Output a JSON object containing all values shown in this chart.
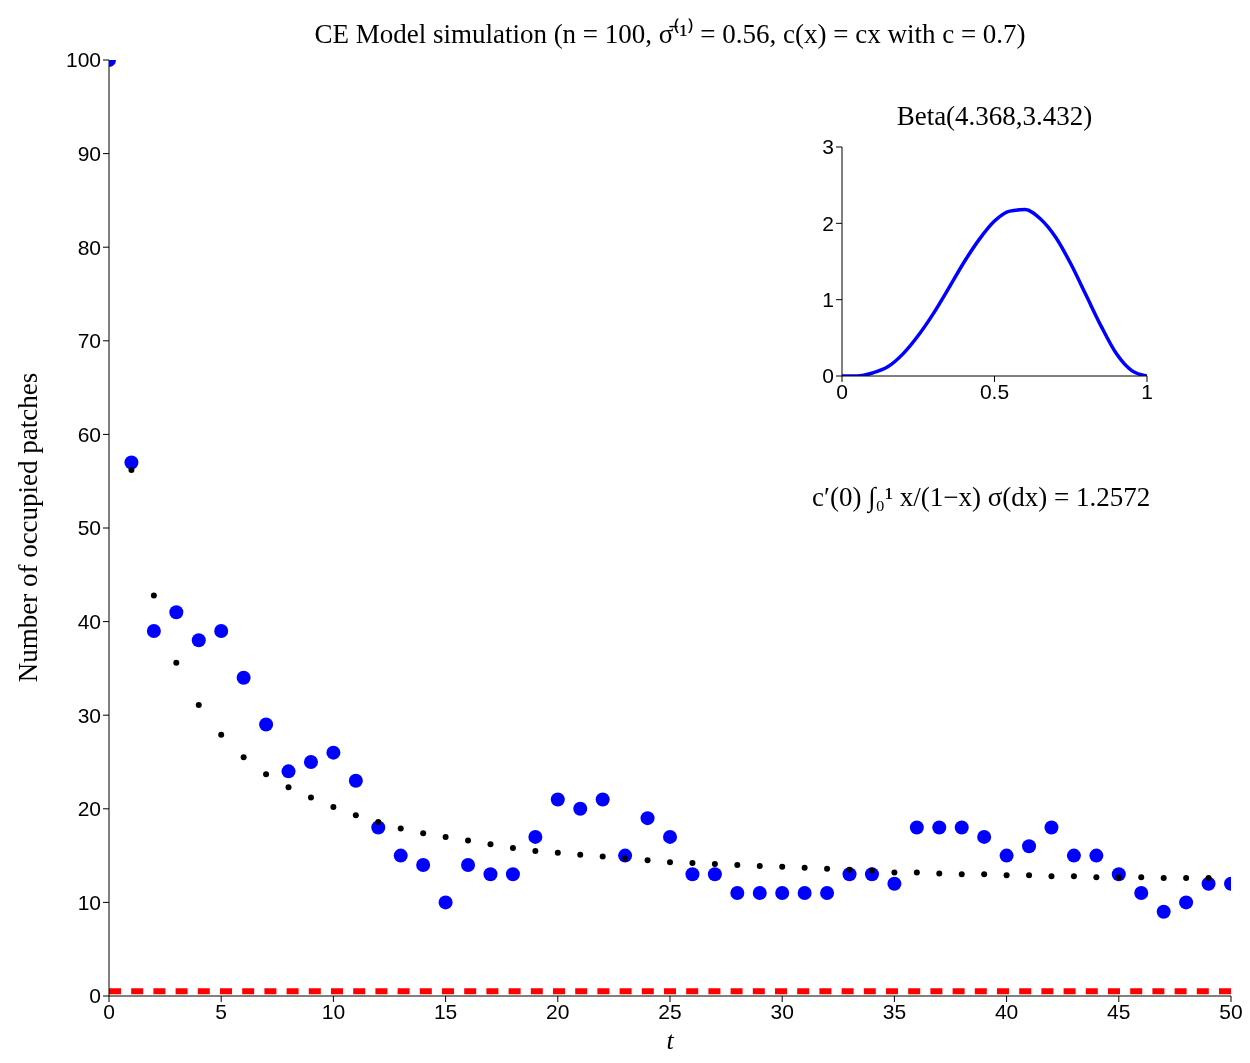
{
  "chart_data": [
    {
      "type": "scatter",
      "title": "CE Model simulation (n = 100, σ̄⁽¹⁾ = 0.56, c(x) = cx  with c = 0.7)",
      "xlabel": "t",
      "ylabel": "Number of occupied patches",
      "x": [
        0,
        1,
        2,
        3,
        4,
        5,
        6,
        7,
        8,
        9,
        10,
        11,
        12,
        13,
        14,
        15,
        16,
        17,
        18,
        19,
        20,
        21,
        22,
        23,
        24,
        25,
        26,
        27,
        28,
        29,
        30,
        31,
        32,
        33,
        34,
        35,
        36,
        37,
        38,
        39,
        40,
        41,
        42,
        43,
        44,
        45,
        46,
        47,
        48,
        49,
        50
      ],
      "series": [
        {
          "color": "#0000ff",
          "values": [
            100,
            57,
            39,
            41,
            38,
            39,
            34,
            29,
            24,
            25,
            26,
            23,
            18,
            15,
            14,
            10,
            14,
            13,
            13,
            17,
            21,
            20,
            21,
            15,
            19,
            17,
            13,
            13,
            11,
            11,
            11,
            11,
            11,
            13,
            13,
            12,
            18,
            18,
            18,
            17,
            15,
            16,
            18,
            15,
            15,
            13,
            11,
            9,
            10,
            12,
            12
          ]
        },
        {
          "color": "#000000",
          "values": [
            null,
            56.2,
            42.8,
            35.6,
            31.1,
            27.9,
            25.5,
            23.7,
            22.3,
            21.2,
            20.2,
            19.3,
            18.6,
            17.9,
            17.4,
            17.0,
            16.6,
            16.2,
            15.8,
            15.5,
            15.3,
            15.1,
            14.9,
            14.7,
            14.5,
            14.3,
            14.2,
            14.1,
            14.0,
            13.9,
            13.8,
            13.7,
            13.6,
            13.5,
            13.4,
            13.2,
            13.2,
            13.1,
            13.0,
            13.0,
            12.9,
            12.9,
            12.8,
            12.8,
            12.7,
            12.7,
            12.7,
            12.6,
            12.6,
            12.6,
            null
          ]
        }
      ],
      "ref_lines": [
        {
          "axis": "y",
          "value": 0.5,
          "color": "#ff0000",
          "line_style": "dashed"
        }
      ],
      "annotations": [
        "c′(0) ∫₀¹ x/(1−x) σ(dx) = 1.2572"
      ],
      "xlim": [
        0,
        50
      ],
      "xticks": [
        0,
        5,
        10,
        15,
        20,
        25,
        30,
        35,
        40,
        45,
        50
      ],
      "ylim": [
        0,
        100
      ],
      "yticks": [
        0,
        10,
        20,
        30,
        40,
        50,
        60,
        70,
        80,
        90,
        100
      ],
      "marker": "circle",
      "legend": false,
      "grid": false
    },
    {
      "type": "line",
      "title": "Beta(4.368,3.432)",
      "x": [
        0,
        0.05,
        0.1,
        0.15,
        0.2,
        0.25,
        0.3,
        0.35,
        0.4,
        0.45,
        0.5,
        0.55,
        0.6,
        0.65,
        0.7,
        0.75,
        0.8,
        0.85,
        0.9,
        0.95,
        1
      ],
      "series": [
        {
          "color": "#0000ff",
          "values": [
            0,
            0,
            0.04,
            0.12,
            0.29,
            0.53,
            0.82,
            1.15,
            1.49,
            1.79,
            2.03,
            2.16,
            2.18,
            2.06,
            1.82,
            1.47,
            1.06,
            0.65,
            0.29,
            0.07,
            0
          ]
        }
      ],
      "xlim": [
        0,
        1
      ],
      "xticks": [
        0,
        0.5,
        1
      ],
      "ylim": [
        0,
        3
      ],
      "yticks": [
        0,
        1,
        2,
        3
      ],
      "legend": false,
      "grid": false,
      "line_style": "solid"
    }
  ]
}
